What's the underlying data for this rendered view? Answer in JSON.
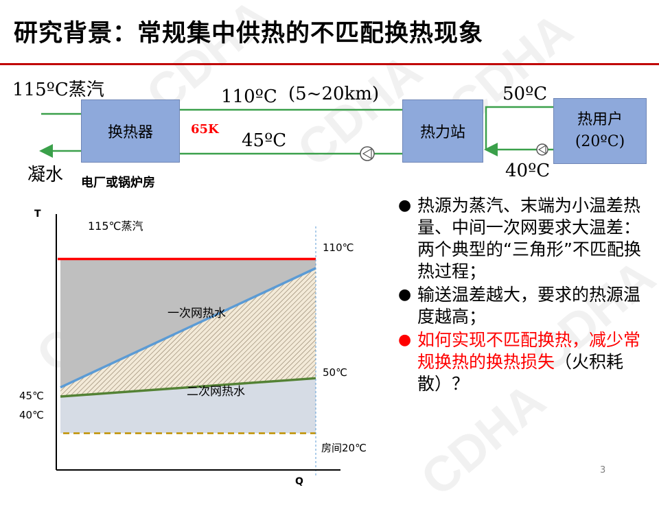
{
  "slide": {
    "title": "研究背景：常规集中供热的不匹配换热现象",
    "page_number": "3",
    "watermark": "CDHA"
  },
  "diagram": {
    "steam_label": "115ºC蒸汽",
    "condensate_label": "凝水",
    "exchanger_label": "换热器",
    "plant_label": "电厂或锅炉房",
    "delta_label": "65K",
    "supply_temp": "110ºC",
    "distance": "(5~20km)",
    "return_temp": "45ºC",
    "station_label": "热力站",
    "secondary_supply": "50ºC",
    "secondary_return": "40ºC",
    "user_label_1": "热用户",
    "user_label_2": "(20ºC)"
  },
  "chart_data": {
    "type": "line",
    "xlabel": "Q",
    "ylabel": "T",
    "series": [
      {
        "name": "115℃蒸汽",
        "x": [
          0,
          1
        ],
        "values": [
          115,
          115
        ],
        "color": "#ff0000"
      },
      {
        "name": "一次网热水",
        "x": [
          0,
          1
        ],
        "values": [
          45,
          110
        ],
        "color": "#5b9bd5"
      },
      {
        "name": "二次网热水",
        "x": [
          0,
          1
        ],
        "values": [
          40,
          50
        ],
        "color": "#548235"
      },
      {
        "name": "房间20℃",
        "x": [
          0,
          1
        ],
        "values": [
          20,
          20
        ],
        "color": "#bf9000"
      }
    ],
    "labels": {
      "steam": "115℃蒸汽",
      "primary_end": "110℃",
      "primary_start": "45℃",
      "secondary_end": "50℃",
      "secondary_start": "40℃",
      "room": "房间20℃",
      "primary_name": "一次网热水",
      "secondary_name": "二次网热水"
    }
  },
  "bullets": [
    {
      "text": "热源为蒸汽、末端为小温差热量、中间一次网要求大温差：两个典型的“三角形”不匹配换热过程；",
      "color": "#000000"
    },
    {
      "text": "输送温差越大，要求的热源温度越高；",
      "color": "#000000"
    },
    {
      "text": "如何实现不匹配换热，减少常规换热的换热损失",
      "suffix": "（火积耗散）？",
      "color": "#ff0000"
    }
  ]
}
